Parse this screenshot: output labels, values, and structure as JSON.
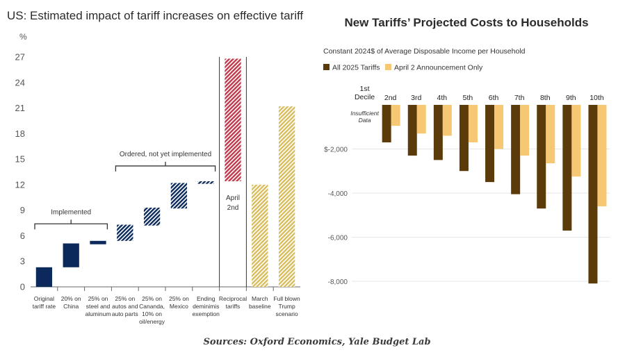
{
  "source": "Sources: Oxford Economics, Yale Budget Lab",
  "colors": {
    "navy": "#0b2a5b",
    "red": "#c0394b",
    "gold": "#d8bd5e",
    "brown": "#5c3b0a",
    "peach": "#f7c873",
    "gridline": "#e6e6e6",
    "axis": "#222222"
  },
  "chart_data": [
    {
      "type": "bar",
      "subtype": "waterfall",
      "title": "US: Estimated impact of tariff increases on effective tariff rate",
      "ylabel": "%",
      "ylim": [
        0,
        27
      ],
      "yticks": [
        "0",
        "3",
        "6",
        "9",
        "12",
        "15",
        "18",
        "21",
        "24",
        "27"
      ],
      "categories": [
        {
          "lines": [
            "Original",
            "tariff rate"
          ],
          "start": 0,
          "end": 2.3,
          "style": "solid",
          "color": "navy"
        },
        {
          "lines": [
            "20% on",
            "China"
          ],
          "start": 2.3,
          "end": 5.1,
          "style": "solid",
          "color": "navy"
        },
        {
          "lines": [
            "25% on",
            "steel and",
            "aluminum"
          ],
          "start": 5.0,
          "end": 5.4,
          "style": "solid",
          "color": "navy"
        },
        {
          "lines": [
            "25% on",
            "autos and",
            "auto parts"
          ],
          "start": 5.4,
          "end": 7.3,
          "style": "hatched",
          "color": "navy"
        },
        {
          "lines": [
            "25% on",
            "Cananda,",
            "10% on",
            "oil/energy"
          ],
          "start": 7.2,
          "end": 9.3,
          "style": "hatched",
          "color": "navy"
        },
        {
          "lines": [
            "25% on",
            "Mexico"
          ],
          "start": 9.2,
          "end": 12.2,
          "style": "hatched",
          "color": "navy"
        },
        {
          "lines": [
            "Ending",
            "deminimis",
            "exemption"
          ],
          "start": 12.1,
          "end": 12.4,
          "style": "hatched",
          "color": "navy"
        },
        {
          "lines": [
            "Reciprocal",
            "tariffs"
          ],
          "start": 12.4,
          "end": 26.8,
          "style": "hatched",
          "color": "red"
        },
        {
          "lines": [
            "March",
            "baseline"
          ],
          "start": 0,
          "end": 12.0,
          "style": "hatched",
          "color": "gold"
        },
        {
          "lines": [
            "Full blown",
            "Trump",
            "scenario"
          ],
          "start": 0,
          "end": 21.2,
          "style": "hatched",
          "color": "gold"
        }
      ],
      "annotations": [
        {
          "text": "Implemented",
          "first": 0,
          "last": 2
        },
        {
          "text": "Ordered, not yet implemented",
          "first": 3,
          "last": 6
        }
      ],
      "box_label": [
        "April",
        "2nd"
      ]
    },
    {
      "type": "bar",
      "title": "New Tariffs’ Projected Costs to Households",
      "subtitle": "Constant 2024$ of Average Disposable Income per Household",
      "categories": [
        "1st Decile",
        "2nd",
        "3rd",
        "4th",
        "5th",
        "6th",
        "7th",
        "8th",
        "9th",
        "10th"
      ],
      "category_lines": [
        [
          "1st",
          "Decile"
        ],
        [
          "2nd"
        ],
        [
          "3rd"
        ],
        [
          "4th"
        ],
        [
          "5th"
        ],
        [
          "6th"
        ],
        [
          "7th"
        ],
        [
          "8th"
        ],
        [
          "9th"
        ],
        [
          "10th"
        ]
      ],
      "ylim": [
        -8000,
        0
      ],
      "yticks": [
        "$-2,000",
        "-4,000",
        "-6,000",
        "-8,000"
      ],
      "series": [
        {
          "name": "All 2025 Tariffs",
          "color": "brown",
          "values": [
            null,
            -1700,
            -2300,
            -2500,
            -3000,
            -3500,
            -4050,
            -4700,
            -5700,
            -8100
          ]
        },
        {
          "name": "April 2 Announcement Only",
          "color": "peach",
          "values": [
            null,
            -950,
            -1300,
            -1400,
            -1700,
            -2000,
            -2300,
            -2650,
            -3250,
            -4600
          ]
        }
      ],
      "note": [
        "Insufficient",
        "Data"
      ]
    }
  ]
}
